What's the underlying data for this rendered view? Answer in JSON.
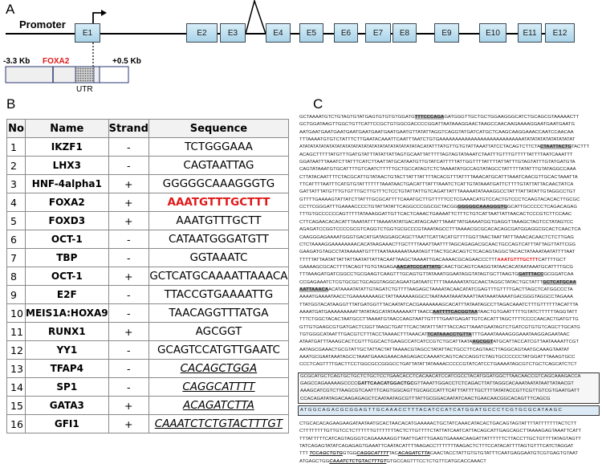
{
  "panel_labels": {
    "a": "A",
    "b": "B",
    "c": "C"
  },
  "panelA": {
    "promoter": "Promoter",
    "exons": [
      "E1",
      "E2",
      "E3",
      "E4",
      "E5",
      "E6",
      "E7",
      "E8",
      "E9",
      "E10",
      "E11",
      "E12"
    ],
    "left_coord": "-3.3 Kb",
    "right_coord": "+0.5 Kb",
    "site_label": "FOXA2",
    "utr_label": "UTR",
    "exon_color": "#bfe0f0",
    "site_color": "#e01818"
  },
  "table": {
    "headers": [
      "No",
      "Name",
      "Strand",
      "Sequence"
    ],
    "rows": [
      {
        "no": "1",
        "name": "IKZF1",
        "strand": "-",
        "seq": "TCTGGGAAA",
        "style": "plain"
      },
      {
        "no": "2",
        "name": "LHX3",
        "strand": "-",
        "seq": "CAGTAATTAG",
        "style": "plain"
      },
      {
        "no": "3",
        "name": "HNF-4alpha1",
        "strand": "+",
        "seq": "GGGGGCAAAGGGTG",
        "style": "plain"
      },
      {
        "no": "4",
        "name": "FOXA2",
        "strand": "+",
        "seq": "AAATGTTTGCTTT",
        "style": "red"
      },
      {
        "no": "5",
        "name": "FOXD3",
        "strand": "+",
        "seq": "AAATGTTTGCTT",
        "style": "plain"
      },
      {
        "no": "6",
        "name": "OCT-1",
        "strand": "-",
        "seq": "CATAATGGGATGTT",
        "style": "plain"
      },
      {
        "no": "7",
        "name": "TBP",
        "strand": "-",
        "seq": "GGTAAATC",
        "style": "plain"
      },
      {
        "no": "8",
        "name": "OCT-1",
        "strand": "+",
        "seq": "GCTCATGCAAAATTAAACA",
        "style": "plain"
      },
      {
        "no": "9",
        "name": "E2F",
        "strand": "-",
        "seq": "TTACCGTGAAAATTG",
        "style": "plain"
      },
      {
        "no": "10",
        "name": "MEIS1A:HOXA9",
        "strand": "-",
        "seq": "TAACAGGTTTATGA",
        "style": "plain"
      },
      {
        "no": "11",
        "name": "RUNX1",
        "strand": "+",
        "seq": "AGCGGT",
        "style": "plain"
      },
      {
        "no": "12",
        "name": "YY1",
        "strand": "-",
        "seq": "GCAGTCCATGTTGAATC",
        "style": "plain"
      },
      {
        "no": "13",
        "name": "TFAP4",
        "strand": "-",
        "seq": "CACAGCTGGA",
        "style": "ul"
      },
      {
        "no": "14",
        "name": "SP1",
        "strand": "-",
        "seq": "CAGGCATTTT",
        "style": "ul"
      },
      {
        "no": "15",
        "name": "GATA3",
        "strand": "+",
        "seq": "ACAGATCTTA",
        "style": "ul"
      },
      {
        "no": "16",
        "name": "GFI1",
        "strand": "+",
        "seq": "CAAATCTCTGTACTTTGT",
        "style": "ul"
      }
    ]
  },
  "sequence": {
    "lines": [
      [
        "GCTAAAATGTCTGTAGTGTATGAGTGTGTGTGGATG",
        {
          "t": "TTTCCCAGA",
          "s": "hl"
        },
        "GATGGGTTGCTGCTGGAAGGGCATCTGCAGCGTAAAAACTT"
      ],
      [
        "GCTGGATAAGTTGGCTGTTCATTCCGCTGTGGCGACCCCGGATTAATAAAGGAACTAAGCCAACAAGAAAAGGAATGAATGAATG"
      ],
      [
        "AATGAATGAATGAATGAATGAATGAATGAATGAATGTTATATTAGGTCAGGTATGATCATGCTCAAGCAAGGAAACCAATCCAACAA"
      ],
      [
        "TTTAAAATGTGTCTATTTCTTGAATACAAATTCAATTTAATCTGTGAAAAAAAAAAAAAAAAAAAAAAAAAAATATATATATATATATATAT"
      ],
      [
        "ATATATATATATATATATATATATATATATATATATATATATATACATATTTATGTTGTGTATTAAATTATCCTACAGTCTTCTA",
        {
          "t": "CTAATTACTG",
          "s": "hl"
        },
        "TACTTT"
      ],
      [
        "ACAGCTTTTTATGTTTGATGTATTTATATTATTAGTGCAATTATTTTTAGTAGTATAAATCTAATTTGTTTGTTTTTATTTTAATCAAATTT"
      ],
      [
        "GGATAATTTAAATCTTATTTCATCTTAATTATGCATAATGTTGTATCATTTTTATTGGTTTTATTTTATTATTTGTAGTATTTGTATGATGTA"
      ],
      [
        "CAGTATAAATGTGCATTTTGTCAATCTTTTTGCTGCCATAGTCTCTAAAATATGCCAGTATAGCCTATTTTTATATTTGTATAGGCCAAA"
      ],
      [
        "CTTATACAATTTTCTACGCATTGTATAACTGTACTTATTTATTTTACACGTTTATTTTAAACATGCATTTAAATCAACGTTGCACTAAATTA"
      ],
      [
        "TTCATTTTAATTTCATGTGTATTTTTTTAAATAACTGACATTTATTTAAATCTCATTGTATAAATGATTCTTTTGTATTATTACAACTATCA"
      ],
      [
        "GATTATTTATGTTTGTGTTTGCTTGTTTCTCCTGTATTATTGTCAGATTATTTAAAAATATAAAGGCCTATTTATTATATTGTAGGCCTGT"
      ],
      [
        "GTTTTGAAAAGTATTATCTTATTTGCGCATTTTCAAATGCTTGTTTTTCCTCGAAACATGTCCACTGTCCCTCAAGTACACACTTGCGC"
      ],
      [
        "CCTTCGGGATTTGAAAACCCCTGTATTATATTCAGGCCCGGCGCTACGG",
        {
          "t": "GGGGGCAAAGGGTG",
          "s": "hl"
        },
        "GCATTGCCCCCTCAGACAGAG"
      ],
      [
        "TTTGTGCCCCCCAGTTTTTATAAAGGATTGTTCACTCAAACTGAAAATTCTTTCTGTCATTAATTATTAACACTCCCGTCTTCCAAC"
      ],
      [
        "CTTCAGAACACACATTTAAATATTTTAAAATATATGACATAGCAATTTAAATTATGAAAATGGTGAGGTTAAAGCTAGTCCTATAGTCC"
      ],
      [
        "AGAGATCCGGTCCCCGCGTCAGGTCTGGTGCGCCCGTAAATAGCCTTTAAAACGCGCACACAGCGATGGAGGCGCACTCAACTCA"
      ],
      [
        "CAAGGGAGAAAATGGGTGACATGATAGGAGCAGCTTAATTCATTACATGTTTTGGTTAACTAATTATTTAAACACAACTCTCTTGAG"
      ],
      [
        "CTCTAAAAGGAAAAAAAACACATAAGAAACTTGCTTTTAAATTAATTTTAGCAGAGACGCAACTGCCAGTCATTTATTAGTTATTCGG"
      ],
      [
        "GAAGATGTAGCCTATAAAAATGTTTTAATAAAAAATAAATAGTTTACTGCACAGTCTCACAGTAGGCTACACTATAAATAATATTTTAAT"
      ],
      [
        "TTTTTATTAATATTATTATTAATATTATTACAATTAAGCTAAAATTGACAAAACGCAGAACCCTTT",
        {
          "t": "AAATGTTTGCTTT",
          "s": "red"
        },
        "CATTTTGCT"
      ],
      [
        "GAAAAGCGCACTTTTACAGTTGTGTAGAGA",
        {
          "t": "AACATCCCATTATG",
          "s": "hl"
        },
        "CAACTGCAGTCAAGGTATAACACATAATAAATGCATTTTGCG"
      ],
      [
        "TTTAAAGATGATCGGCCTGCGAAGTCAAGTTTGCAGTGTTATAAATGGAATAGGTATAGTGCTTAAGTG",
        {
          "t": "GATTTACC",
          "s": "hl"
        },
        "GCGGATCAA"
      ],
      [
        "CCGAGAAATCTCGTGCGCTGCAGGTAGGCAGAATGATAATCTTTTAAAAAATATGCAACTAGGCTATACTGCTATTT",
        {
          "t": "GCTCATGCAA",
          "s": "hl"
        }
      ],
      [
        {
          "t": "AATTAAACA",
          "s": "hl"
        },
        "ACATAAAATATATTGTAGATCTGTTTTAAGAGCTAAAATACAACATATCGAGTTTGTTTTGACTTAGCTCATGGCCCTA"
      ],
      [
        "AAAATGAAAATAACCTGAAAAAAAAGCTATTAAAAAAGGCCTAATAAATAAATAAATTAATAAATAAAATGACGGGTAGGCCTAGAAA"
      ],
      [
        "TTATGGTACATAAGGTTTATGATGGTTTACAATATCACGAAAAAAAGCACATTTATAATAGCCTTAGACAAATCTTTGTTTTTTACATTTA"
      ],
      [
        "AAAATGATGAAAAAAAAATTATATAGCATATAAAAAATTTAACC",
        {
          "t": "AATTTTCACGGTAA",
          "s": "hl"
        },
        "TAACTGTGAATTTTTGTATCTTTTTTAGGTATT"
      ],
      [
        "TTTCTGGCTACACTAATGCCTTAAAATGTAACCAAGTAATTGTTTTGAATGAGATTGTCACATTTAGCTTTTCCCCAACACTGATGTTG"
      ],
      [
        "GTTGTGAAGCGTGATGACTCGGTTAAGCTGATTTCACTATATTTATTTACCAGTTAAATGAATAGTCTGATCGTGTGTCAGCTTGCATG"
      ],
      [
        "TGTGGGCATAATTTGACGTCTTTACCTAAAACTTTAAACAT",
        {
          "t": "TCATAAACCTGTTA",
          "s": "hl"
        },
        "TTTGAAATAAAAGGGAAATAAGGAGAATAAC"
      ],
      [
        "ATAATGATTTAAAGCACTCGTTTGGCACTGAAGCCATCATCCGTCTGCATTAATA",
        {
          "t": "AGCGGT",
          "s": "hl"
        },
        "ATGCATTACCATCGTTAATAAAATTCGT"
      ],
      [
        "AATAGCGAAACTGCGTATTGCTATTACTATTAAAACGTAGCCTATATTACTGCCTTCAGTAACTTAGGCAGTAATGCAAAGTAATAT"
      ],
      [
        "AAATGCGAATAAATAGCCTAAATGAAAGAAACAAGAGACCAAAATCAGTCACCAGGTCTAGTGCCCCCCTATGGATTTAAAGTGCC"
      ],
      [
        "CCCTCAGTTTTGACTTCCTGGCGCCGGGCCTGATTATATTATAAAACCCCCGTATCATCCTGAAAATAGCGTCTGCTCAGCATCTCT"
      ]
    ],
    "box_lines": [
      [
        "GCGCATGCTCAGTGCTGCTCTGCTCCTGAACACCTCACAACATCCATCGCCTACATGGATGGCTTAACAACCGTCAGCAAAGACCA"
      ],
      [
        "GAGCCAGAAAAAGCCCC",
        {
          "t": "GATTCAACATGGACTGC",
          "s": "bd"
        },
        "GTTAAATTGGACCTCTCAGACTTATTAGGCACAAATAATATAATTATAACGT"
      ],
      [
        "AAAGCATCGTCTTAAGCGTCAATTTCAGTGGCAGTTGCAGCCATTTCATTTATTTTGCTTTTATATACCGTTCGTTGTCGTGAATGATT"
      ],
      [
        "CCACAGATATAGACAAGAGAGCTCAATAATAGCGTTTATTGCGGACAATATCAACTGAACAACGGCACAGTTTCAGCG"
      ]
    ],
    "blue_line": "ATGGCAGACGCGGAGTTGCAAACCTTTACATCCATCATGGATGCCCTCGTGCGCATAAGC",
    "after_lines": [
      [
        "CTGCACACAGAAGAAGATAATAATGCACTAACACATGAAAAACTGCTATCAAACATACACTGACAGTAGTATTTTATTTTTTTACTCTT"
      ],
      [
        "CTTTTTTTTGTTGTCCTCTTTTTTGTTTTTTTACTCTTGTTTTCTATTATCAATCATTACAGCATTGAGCAGCTTAAAAGAGTAAATTCATT"
      ],
      [
        "TTTATTTTTCATCAGTAGGGTCAGAAAAAGGTTAATTGATTTGAAGTGAAAACAAGATTATTTTTTCTTACCTTGCTGTTTTATAGTAGTT"
      ],
      [
        "TATCAGAGTATATCAGAGAGTGAAATTCAATACATTTTAAGACCTTTTTTTAAGACTCTTTCCATACATTTTAGTGTTTCATCTAGGAT"
      ],
      [
        "TTT ",
        {
          "t": "TCCAGCTGTG",
          "s": "ul"
        },
        "GTGG",
        {
          "t": "CAGGCATTTT",
          "s": "ul"
        },
        "TAC",
        {
          "t": "ACAGATCTTA",
          "s": "ul"
        },
        "CAACTACCTATTGTGTGTATTTCAATGAGGAATGTCGTGAGTGTAAT"
      ],
      [
        "ATGAGCTGG",
        {
          "t": "CAAATCTCTGTACTTTGT",
          "s": "ul"
        },
        "GTGCCAGTTTCCTCTGTTCATGCACCAAACT"
      ]
    ]
  }
}
